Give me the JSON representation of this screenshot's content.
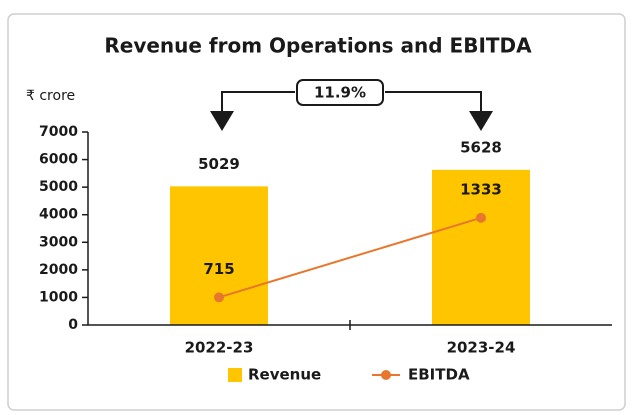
{
  "chart_data": {
    "type": "bar_line",
    "title": "Revenue from Operations and EBITDA",
    "unit_label": "₹ crore",
    "annotation": "11.9%",
    "categories": [
      "2022-23",
      "2023-24"
    ],
    "series": [
      {
        "name": "Revenue",
        "type": "bar",
        "color": "#ffc600",
        "values": [
          5029,
          5628
        ]
      },
      {
        "name": "EBITDA",
        "type": "line",
        "color": "#e8772e",
        "axis": "y2",
        "values": [
          715,
          1333
        ]
      }
    ],
    "ylim": [
      0,
      7000
    ],
    "yticks": [
      0,
      1000,
      2000,
      3000,
      4000,
      5000,
      6000,
      7000
    ],
    "y2lim": [
      500,
      2000
    ],
    "legend": "bottom"
  }
}
